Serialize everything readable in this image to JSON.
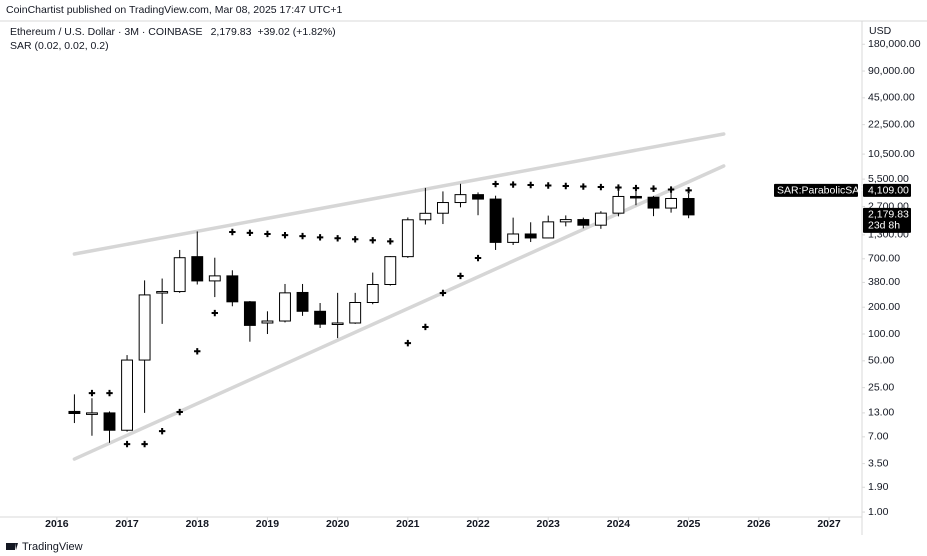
{
  "header": {
    "publisher": "CoinChartist published on TradingView.com, Mar 08, 2025 17:47 UTC+1",
    "logo": "TradingView"
  },
  "chart_data": {
    "type": "candlestick",
    "symbol": "Ethereum / U.S. Dollar · 3M · COINBASE",
    "last": "2,179.83",
    "change": "+39.02 (+1.82%)",
    "currency": "USD",
    "log_scale": true,
    "up_color": "#ffffff",
    "down_color": "#000000",
    "wick_color": "#000000",
    "x": [
      2016.25,
      2016.5,
      2016.75,
      2017,
      2017.25,
      2017.5,
      2017.75,
      2018,
      2018.25,
      2018.5,
      2018.75,
      2019,
      2019.25,
      2019.5,
      2019.75,
      2020,
      2020.25,
      2020.5,
      2020.75,
      2021,
      2021.25,
      2021.5,
      2021.75,
      2022,
      2022.25,
      2022.5,
      2022.75,
      2023,
      2023.25,
      2023.5,
      2023.75,
      2024,
      2024.25,
      2024.5,
      2024.75,
      2025
    ],
    "open": [
      13.5,
      12.5,
      13,
      8.3,
      51,
      290,
      300,
      740,
      395,
      450,
      230,
      133,
      140,
      293,
      180,
      129,
      133,
      226,
      360,
      740,
      1920,
      2275,
      3000,
      3680,
      3280,
      1070,
      1330,
      1200,
      1820,
      1930,
      1670,
      2280,
      3510,
      3440,
      2600,
      3330
    ],
    "high": [
      21,
      19,
      13.5,
      58,
      400,
      420,
      880,
      1420,
      720,
      520,
      235,
      180,
      365,
      365,
      223,
      290,
      290,
      490,
      750,
      2040,
      4380,
      4000,
      4870,
      3900,
      3580,
      2030,
      1800,
      2140,
      2150,
      2030,
      2400,
      4090,
      4000,
      3560,
      4100,
      3750
    ],
    "low": [
      10,
      7.2,
      6,
      8,
      13,
      130,
      290,
      360,
      260,
      205,
      82,
      100,
      135,
      160,
      117,
      90,
      130,
      216,
      350,
      716,
      1700,
      1720,
      2650,
      2160,
      880,
      1000,
      1080,
      1190,
      1620,
      1540,
      1520,
      2100,
      2800,
      2110,
      2310,
      2000
    ],
    "close": [
      12.8,
      13,
      8.3,
      51,
      275,
      300,
      720,
      395,
      450,
      230,
      125,
      140,
      290,
      180,
      129,
      133,
      226,
      360,
      740,
      1920,
      2270,
      3000,
      3680,
      3280,
      1070,
      1330,
      1200,
      1820,
      1930,
      1670,
      2280,
      3510,
      3420,
      2600,
      3330,
      2179.83
    ],
    "overlays": [
      {
        "type": "scatter",
        "name": "SAR (0.02, 0.02, 0.2)",
        "color": "#000000",
        "marker": "cross",
        "values": [
          null,
          21.7,
          21.7,
          5.8,
          5.8,
          8.1,
          13.3,
          64,
          172,
          1400,
          1370,
          1330,
          1290,
          1260,
          1220,
          1190,
          1160,
          1130,
          1100,
          79,
          120,
          289,
          449,
          714,
          4840,
          4780,
          4720,
          4660,
          4600,
          4540,
          4480,
          4420,
          4360,
          4300,
          4200,
          4109
        ]
      }
    ],
    "trendlines": [
      {
        "x": [
          2016.25,
          2025.5
        ],
        "y": [
          792,
          17660
        ],
        "color": "#d6d6d6"
      },
      {
        "x": [
          2016.25,
          2025.5
        ],
        "y": [
          3.94,
          7720
        ],
        "color": "#d6d6d6"
      }
    ],
    "price_label": {
      "value": 2179.83,
      "label": "2,179.83",
      "countdown": "23d 8h"
    },
    "sar_label": {
      "name": "SAR:ParabolicSAR",
      "value": 4109,
      "label": "4,109.00"
    },
    "xlim": [
      2015.19,
      2027.47
    ],
    "xticks": [
      2016,
      2017,
      2018,
      2019,
      2020,
      2021,
      2022,
      2023,
      2024,
      2025,
      2026,
      2027
    ],
    "ylim": [
      0.88,
      320000
    ],
    "yticks": [
      {
        "value": 180000,
        "label": "180,000.00"
      },
      {
        "value": 90000,
        "label": "90,000.00"
      },
      {
        "value": 45000,
        "label": "45,000.00"
      },
      {
        "value": 22500,
        "label": "22,500.00"
      },
      {
        "value": 10500,
        "label": "10,500.00"
      },
      {
        "value": 5500,
        "label": "5,500.00"
      },
      {
        "value": 2700,
        "label": "2,700.00"
      },
      {
        "value": 1300,
        "label": "1,300.00"
      },
      {
        "value": 700,
        "label": "700.00"
      },
      {
        "value": 380,
        "label": "380.00"
      },
      {
        "value": 200,
        "label": "200.00"
      },
      {
        "value": 100,
        "label": "100.00"
      },
      {
        "value": 50,
        "label": "50.00"
      },
      {
        "value": 25,
        "label": "25.00"
      },
      {
        "value": 13,
        "label": "13.00"
      },
      {
        "value": 7,
        "label": "7.00"
      },
      {
        "value": 3.5,
        "label": "3.50"
      },
      {
        "value": 1.9,
        "label": "1.90"
      },
      {
        "value": 1,
        "label": "1.00"
      }
    ]
  }
}
